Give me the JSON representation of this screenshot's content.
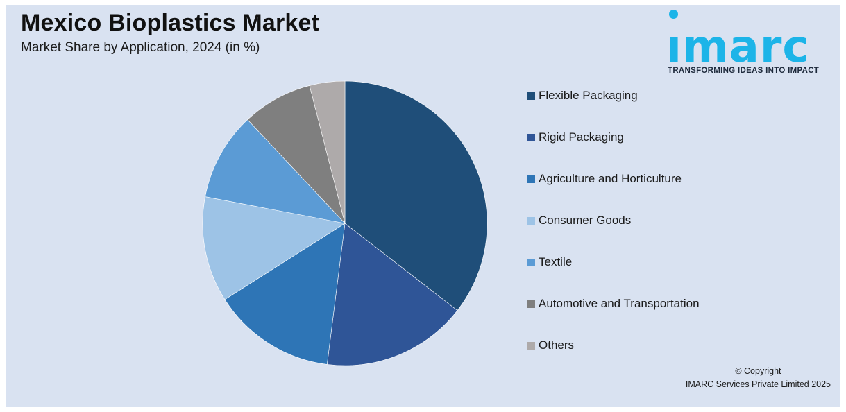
{
  "header": {
    "title": "Mexico Bioplastics Market",
    "subtitle": "Market Share by Application, 2024 (in %)"
  },
  "logo": {
    "word": "ımarc",
    "tagline": "TRANSFORMING IDEAS INTO IMPACT",
    "color": "#1cb4e8"
  },
  "chart_data": {
    "type": "pie",
    "title": "Mexico Bioplastics Market",
    "subtitle": "Market Share by Application, 2024 (in %)",
    "legend_position": "right",
    "categories": [
      "Flexible Packaging",
      "Rigid Packaging",
      "Agriculture and Horticulture",
      "Consumer Goods",
      "Textile",
      "Automotive and Transportation",
      "Others"
    ],
    "values": [
      35.5,
      16.5,
      14.0,
      12.0,
      10.0,
      8.0,
      4.0
    ],
    "colors": [
      "#1f4e79",
      "#2f5597",
      "#2e75b6",
      "#9dc3e6",
      "#5b9bd5",
      "#7f7f7f",
      "#aeaaaa"
    ]
  },
  "footer": {
    "copyright_line1": "© Copyright",
    "copyright_line2": "IMARC Services Private Limited 2025"
  }
}
